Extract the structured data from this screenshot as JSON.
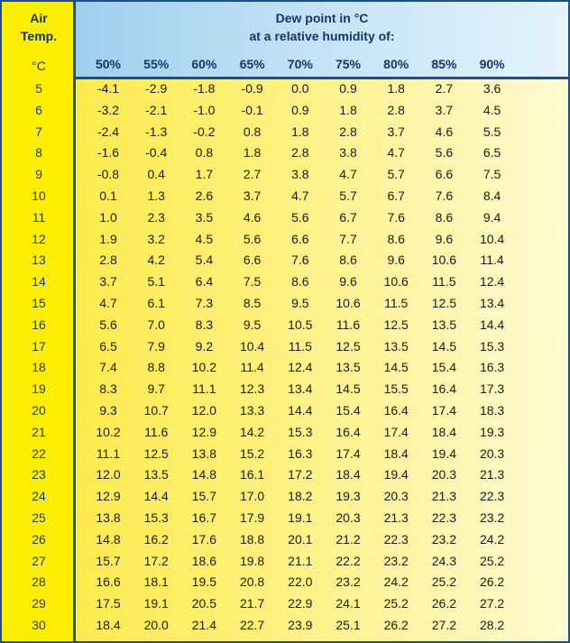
{
  "header": {
    "left_title_line1": "Air",
    "left_title_line2": "Temp.",
    "unit": "°C",
    "title_line1": "Dew point in °C",
    "title_line2": "at a relative humidity of:"
  },
  "humidity_columns": [
    "50%",
    "55%",
    "60%",
    "65%",
    "70%",
    "75%",
    "80%",
    "85%",
    "90%"
  ],
  "rows": [
    {
      "temp": "5",
      "values": [
        "-4.1",
        "-2.9",
        "-1.8",
        "-0.9",
        "0.0",
        "0.9",
        "1.8",
        "2.7",
        "3.6"
      ]
    },
    {
      "temp": "6",
      "values": [
        "-3.2",
        "-2.1",
        "-1.0",
        "-0.1",
        "0.9",
        "1.8",
        "2.8",
        "3.7",
        "4.5"
      ]
    },
    {
      "temp": "7",
      "values": [
        "-2.4",
        "-1.3",
        "-0.2",
        "0.8",
        "1.8",
        "2.8",
        "3.7",
        "4.6",
        "5.5"
      ]
    },
    {
      "temp": "8",
      "values": [
        "-1.6",
        "-0.4",
        "0.8",
        "1.8",
        "2.8",
        "3.8",
        "4.7",
        "5.6",
        "6.5"
      ]
    },
    {
      "temp": "9",
      "values": [
        "-0.8",
        "0.4",
        "1.7",
        "2.7",
        "3.8",
        "4.7",
        "5.7",
        "6.6",
        "7.5"
      ]
    },
    {
      "temp": "10",
      "values": [
        "0.1",
        "1.3",
        "2.6",
        "3.7",
        "4.7",
        "5.7",
        "6.7",
        "7.6",
        "8.4"
      ]
    },
    {
      "temp": "11",
      "values": [
        "1.0",
        "2.3",
        "3.5",
        "4.6",
        "5.6",
        "6.7",
        "7.6",
        "8.6",
        "9.4"
      ]
    },
    {
      "temp": "12",
      "values": [
        "1.9",
        "3.2",
        "4.5",
        "5.6",
        "6.6",
        "7.7",
        "8.6",
        "9.6",
        "10.4"
      ]
    },
    {
      "temp": "13",
      "values": [
        "2.8",
        "4.2",
        "5.4",
        "6.6",
        "7.6",
        "8.6",
        "9.6",
        "10.6",
        "11.4"
      ]
    },
    {
      "temp": "14",
      "values": [
        "3.7",
        "5.1",
        "6.4",
        "7.5",
        "8.6",
        "9.6",
        "10.6",
        "11.5",
        "12.4"
      ]
    },
    {
      "temp": "15",
      "values": [
        "4.7",
        "6.1",
        "7.3",
        "8.5",
        "9.5",
        "10.6",
        "11.5",
        "12.5",
        "13.4"
      ]
    },
    {
      "temp": "16",
      "values": [
        "5.6",
        "7.0",
        "8.3",
        "9.5",
        "10.5",
        "11.6",
        "12.5",
        "13.5",
        "14.4"
      ]
    },
    {
      "temp": "17",
      "values": [
        "6.5",
        "7.9",
        "9.2",
        "10.4",
        "11.5",
        "12.5",
        "13.5",
        "14.5",
        "15.3"
      ]
    },
    {
      "temp": "18",
      "values": [
        "7.4",
        "8.8",
        "10.2",
        "11.4",
        "12.4",
        "13.5",
        "14.5",
        "15.4",
        "16.3"
      ]
    },
    {
      "temp": "19",
      "values": [
        "8.3",
        "9.7",
        "11.1",
        "12.3",
        "13.4",
        "14.5",
        "15.5",
        "16.4",
        "17.3"
      ]
    },
    {
      "temp": "20",
      "values": [
        "9.3",
        "10.7",
        "12.0",
        "13.3",
        "14.4",
        "15.4",
        "16.4",
        "17.4",
        "18.3"
      ]
    },
    {
      "temp": "21",
      "values": [
        "10.2",
        "11.6",
        "12.9",
        "14.2",
        "15.3",
        "16.4",
        "17.4",
        "18.4",
        "19.3"
      ]
    },
    {
      "temp": "22",
      "values": [
        "11.1",
        "12.5",
        "13.8",
        "15.2",
        "16.3",
        "17.4",
        "18.4",
        "19.4",
        "20.3"
      ]
    },
    {
      "temp": "23",
      "values": [
        "12.0",
        "13.5",
        "14.8",
        "16.1",
        "17.2",
        "18.4",
        "19.4",
        "20.3",
        "21.3"
      ]
    },
    {
      "temp": "24",
      "values": [
        "12.9",
        "14.4",
        "15.7",
        "17.0",
        "18.2",
        "19.3",
        "20.3",
        "21.3",
        "22.3"
      ]
    },
    {
      "temp": "25",
      "values": [
        "13.8",
        "15.3",
        "16.7",
        "17.9",
        "19.1",
        "20.3",
        "21.3",
        "22.3",
        "23.2"
      ]
    },
    {
      "temp": "26",
      "values": [
        "14.8",
        "16.2",
        "17.6",
        "18.8",
        "20.1",
        "21.2",
        "22.3",
        "23.2",
        "24.2"
      ]
    },
    {
      "temp": "27",
      "values": [
        "15.7",
        "17.2",
        "18.6",
        "19.8",
        "21.1",
        "22.2",
        "23.2",
        "24.3",
        "25.2"
      ]
    },
    {
      "temp": "28",
      "values": [
        "16.6",
        "18.1",
        "19.5",
        "20.8",
        "22.0",
        "23.2",
        "24.2",
        "25.2",
        "26.2"
      ]
    },
    {
      "temp": "29",
      "values": [
        "17.5",
        "19.1",
        "20.5",
        "21.7",
        "22.9",
        "24.1",
        "25.2",
        "26.2",
        "27.2"
      ]
    },
    {
      "temp": "30",
      "values": [
        "18.4",
        "20.0",
        "21.4",
        "22.7",
        "23.9",
        "25.1",
        "26.2",
        "27.2",
        "28.2"
      ]
    }
  ],
  "colors": {
    "border": "#1a4f8e",
    "left_column": "#ffee00",
    "header_background": "#c4e3f6",
    "header_text": "#15366a"
  }
}
